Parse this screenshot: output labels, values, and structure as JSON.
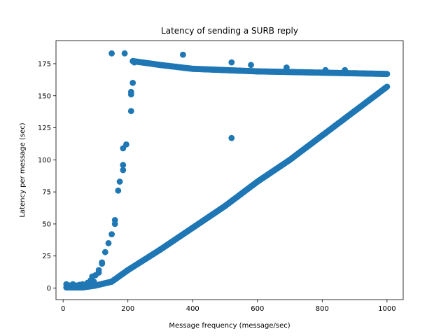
{
  "chart_data": {
    "type": "scatter",
    "title": "Latency of sending a SURB reply",
    "xlabel": "Message frequency (message/sec)",
    "ylabel": "Latency per message (sec)",
    "xlim": [
      -22,
      1050
    ],
    "ylim": [
      -9,
      193
    ],
    "xticks": [
      0,
      200,
      400,
      600,
      800,
      1000
    ],
    "yticks": [
      0,
      25,
      50,
      75,
      100,
      125,
      150,
      175
    ],
    "grid": false,
    "legend": "none",
    "marker_color": "#1f77b4",
    "series": [
      {
        "segments": [
          {
            "from": [
              10,
              0.5
            ],
            "to": [
              60,
              0.5
            ],
            "step": 2
          },
          {
            "from": [
              60,
              0.5
            ],
            "to": [
              100,
              2
            ],
            "step": 2
          },
          {
            "from": [
              100,
              2
            ],
            "to": [
              150,
              5
            ],
            "step": 2
          },
          {
            "from": [
              150,
              5
            ],
            "to": [
              200,
              14
            ],
            "step": 2
          },
          {
            "from": [
              200,
              14
            ],
            "to": [
              300,
              30
            ],
            "step": 2
          },
          {
            "from": [
              300,
              30
            ],
            "to": [
              400,
              47
            ],
            "step": 2
          },
          {
            "from": [
              400,
              47
            ],
            "to": [
              500,
              64
            ],
            "step": 2
          },
          {
            "from": [
              500,
              64
            ],
            "to": [
              600,
              83
            ],
            "step": 2
          },
          {
            "from": [
              600,
              83
            ],
            "to": [
              700,
              100
            ],
            "step": 2
          },
          {
            "from": [
              700,
              100
            ],
            "to": [
              800,
              119
            ],
            "step": 2
          },
          {
            "from": [
              800,
              119
            ],
            "to": [
              900,
              138
            ],
            "step": 2
          },
          {
            "from": [
              900,
              138
            ],
            "to": [
              1000,
              157
            ],
            "step": 2
          },
          {
            "from": [
              215,
              177
            ],
            "to": [
              300,
              174
            ],
            "step": 2
          },
          {
            "from": [
              300,
              174
            ],
            "to": [
              400,
              171
            ],
            "step": 2
          },
          {
            "from": [
              400,
              171
            ],
            "to": [
              500,
              170
            ],
            "step": 2
          },
          {
            "from": [
              500,
              170
            ],
            "to": [
              600,
              169
            ],
            "step": 2
          },
          {
            "from": [
              600,
              169
            ],
            "to": [
              800,
              168
            ],
            "step": 2
          },
          {
            "from": [
              800,
              168
            ],
            "to": [
              1000,
              167
            ],
            "step": 2
          }
        ],
        "points": [
          [
            10,
            3
          ],
          [
            15,
            1
          ],
          [
            20,
            2
          ],
          [
            25,
            0.5
          ],
          [
            30,
            3
          ],
          [
            35,
            1
          ],
          [
            40,
            2
          ],
          [
            45,
            0.8
          ],
          [
            50,
            2.5
          ],
          [
            55,
            1
          ],
          [
            60,
            3
          ],
          [
            65,
            1.5
          ],
          [
            70,
            2
          ],
          [
            75,
            4
          ],
          [
            80,
            2
          ],
          [
            85,
            6
          ],
          [
            90,
            9
          ],
          [
            95,
            5
          ],
          [
            100,
            10
          ],
          [
            110,
            12
          ],
          [
            110,
            14
          ],
          [
            120,
            19
          ],
          [
            120,
            20
          ],
          [
            130,
            28
          ],
          [
            140,
            35
          ],
          [
            150,
            42
          ],
          [
            160,
            50
          ],
          [
            160,
            53
          ],
          [
            170,
            76
          ],
          [
            175,
            83
          ],
          [
            185,
            92
          ],
          [
            185,
            96
          ],
          [
            185,
            109
          ],
          [
            195,
            112
          ],
          [
            210,
            138
          ],
          [
            210,
            151
          ],
          [
            210,
            153
          ],
          [
            215,
            160
          ],
          [
            150,
            183
          ],
          [
            190,
            183
          ],
          [
            215,
            177
          ],
          [
            220,
            176
          ],
          [
            370,
            182
          ],
          [
            520,
            176
          ],
          [
            520,
            117
          ],
          [
            580,
            174
          ],
          [
            690,
            172
          ],
          [
            810,
            170
          ],
          [
            870,
            170
          ]
        ]
      }
    ]
  }
}
